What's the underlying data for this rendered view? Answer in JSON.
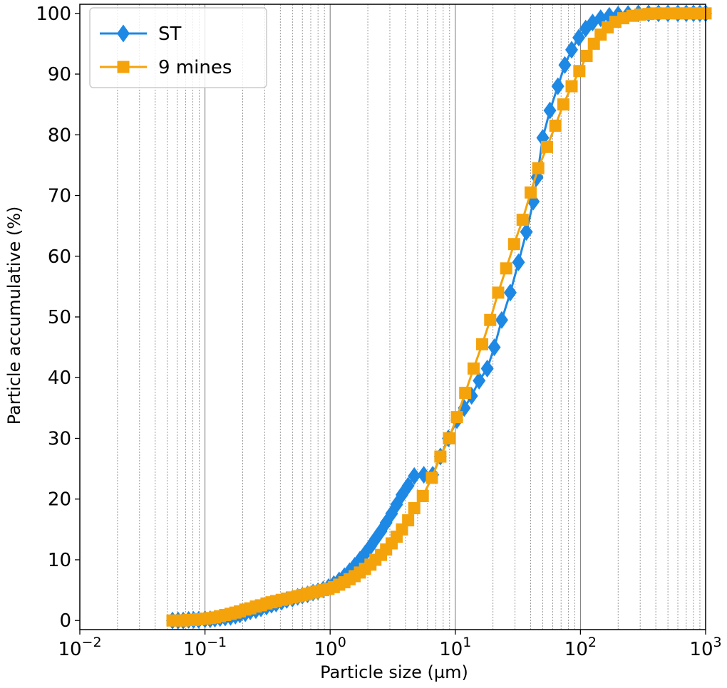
{
  "chart_data": {
    "type": "line",
    "title": "",
    "xlabel": "Particle size (µm)",
    "ylabel": "Particle accumulative (%)",
    "xscale": "log",
    "xlim": [
      0.01,
      1000
    ],
    "ylim": [
      -1.5,
      101.5
    ],
    "x_ticks": [
      0.01,
      0.1,
      1,
      10,
      100,
      1000
    ],
    "x_tick_labels": [
      {
        "base": "10",
        "exp": "−2"
      },
      {
        "base": "10",
        "exp": "−1"
      },
      {
        "base": "10",
        "exp": "0"
      },
      {
        "base": "10",
        "exp": "1"
      },
      {
        "base": "10",
        "exp": "2"
      },
      {
        "base": "10",
        "exp": "3"
      }
    ],
    "y_ticks": [
      0,
      10,
      20,
      30,
      40,
      50,
      60,
      70,
      80,
      90,
      100
    ],
    "y_tick_labels": [
      "0",
      "10",
      "20",
      "30",
      "40",
      "50",
      "60",
      "70",
      "80",
      "90",
      "100"
    ],
    "grid": "vertical major and minor (dotted) lines",
    "legend_position": "top-left",
    "series": [
      {
        "name": "ST",
        "color": "#1e88e5",
        "marker": "diamond",
        "points": [
          [
            0.055,
            0.0
          ],
          [
            0.061,
            0.0
          ],
          [
            0.067,
            0.0
          ],
          [
            0.074,
            0.1
          ],
          [
            0.081,
            0.1
          ],
          [
            0.089,
            0.1
          ],
          [
            0.1,
            0.2
          ],
          [
            0.11,
            0.2
          ],
          [
            0.12,
            0.3
          ],
          [
            0.132,
            0.4
          ],
          [
            0.145,
            0.5
          ],
          [
            0.16,
            0.6
          ],
          [
            0.175,
            0.8
          ],
          [
            0.19,
            1.0
          ],
          [
            0.21,
            1.2
          ],
          [
            0.23,
            1.5
          ],
          [
            0.255,
            1.7
          ],
          [
            0.28,
            2.0
          ],
          [
            0.31,
            2.3
          ],
          [
            0.34,
            2.6
          ],
          [
            0.37,
            2.8
          ],
          [
            0.41,
            3.1
          ],
          [
            0.45,
            3.4
          ],
          [
            0.5,
            3.6
          ],
          [
            0.55,
            3.9
          ],
          [
            0.6,
            4.1
          ],
          [
            0.66,
            4.3
          ],
          [
            0.73,
            4.6
          ],
          [
            0.8,
            4.8
          ],
          [
            0.88,
            5.1
          ],
          [
            0.97,
            5.5
          ],
          [
            1.07,
            6.0
          ],
          [
            1.18,
            6.6
          ],
          [
            1.3,
            7.3
          ],
          [
            1.43,
            8.1
          ],
          [
            1.57,
            9.0
          ],
          [
            1.73,
            10.0
          ],
          [
            1.9,
            11.0
          ],
          [
            2.1,
            12.2
          ],
          [
            2.3,
            13.4
          ],
          [
            2.55,
            14.7
          ],
          [
            2.8,
            16.1
          ],
          [
            3.1,
            17.6
          ],
          [
            3.4,
            19.1
          ],
          [
            3.75,
            20.7
          ],
          [
            4.2,
            22.2
          ],
          [
            4.7,
            23.8
          ],
          [
            5.6,
            24.0
          ],
          [
            6.6,
            24.0
          ],
          [
            7.6,
            27.0
          ],
          [
            8.8,
            30.0
          ],
          [
            10.3,
            33.0
          ],
          [
            11.8,
            35.0
          ],
          [
            13.5,
            37.0
          ],
          [
            15.5,
            39.5
          ],
          [
            18.0,
            41.5
          ],
          [
            20.5,
            45.0
          ],
          [
            23.5,
            49.5
          ],
          [
            27.5,
            54.0
          ],
          [
            32.0,
            59.0
          ],
          [
            37.0,
            64.0
          ],
          [
            42.0,
            69.0
          ],
          [
            45.0,
            73.0
          ],
          [
            50.0,
            79.5
          ],
          [
            57.0,
            84.0
          ],
          [
            66.0,
            88.0
          ],
          [
            75.0,
            91.5
          ],
          [
            85.0,
            94.0
          ],
          [
            97.0,
            96.0
          ],
          [
            110.0,
            97.5
          ],
          [
            125.0,
            98.5
          ],
          [
            145.0,
            99.2
          ],
          [
            170.0,
            99.6
          ],
          [
            200.0,
            99.8
          ],
          [
            240.0,
            99.9
          ],
          [
            290.0,
            100.0
          ],
          [
            350.0,
            100.0
          ],
          [
            420.0,
            100.0
          ],
          [
            500.0,
            100.0
          ],
          [
            600.0,
            100.0
          ],
          [
            700.0,
            100.0
          ],
          [
            800.0,
            100.0
          ],
          [
            900.0,
            100.0
          ],
          [
            1000.0,
            100.0
          ]
        ]
      },
      {
        "name": "9 mines",
        "color": "#f5a30a",
        "marker": "square",
        "points": [
          [
            0.055,
            0.0
          ],
          [
            0.061,
            0.0
          ],
          [
            0.067,
            0.0
          ],
          [
            0.074,
            0.1
          ],
          [
            0.081,
            0.1
          ],
          [
            0.089,
            0.2
          ],
          [
            0.1,
            0.3
          ],
          [
            0.11,
            0.4
          ],
          [
            0.12,
            0.5
          ],
          [
            0.132,
            0.7
          ],
          [
            0.145,
            0.9
          ],
          [
            0.16,
            1.1
          ],
          [
            0.175,
            1.3
          ],
          [
            0.19,
            1.5
          ],
          [
            0.21,
            1.8
          ],
          [
            0.23,
            2.0
          ],
          [
            0.255,
            2.3
          ],
          [
            0.28,
            2.5
          ],
          [
            0.31,
            2.8
          ],
          [
            0.34,
            3.0
          ],
          [
            0.37,
            3.2
          ],
          [
            0.41,
            3.4
          ],
          [
            0.45,
            3.6
          ],
          [
            0.5,
            3.8
          ],
          [
            0.55,
            4.0
          ],
          [
            0.6,
            4.2
          ],
          [
            0.66,
            4.4
          ],
          [
            0.73,
            4.6
          ],
          [
            0.8,
            4.8
          ],
          [
            0.88,
            5.0
          ],
          [
            0.97,
            5.2
          ],
          [
            1.07,
            5.5
          ],
          [
            1.18,
            5.9
          ],
          [
            1.3,
            6.3
          ],
          [
            1.43,
            6.8
          ],
          [
            1.57,
            7.3
          ],
          [
            1.73,
            7.9
          ],
          [
            1.9,
            8.5
          ],
          [
            2.1,
            9.2
          ],
          [
            2.3,
            10.0
          ],
          [
            2.55,
            10.8
          ],
          [
            2.8,
            11.7
          ],
          [
            3.1,
            12.7
          ],
          [
            3.4,
            13.8
          ],
          [
            3.75,
            15.0
          ],
          [
            4.2,
            16.5
          ],
          [
            4.7,
            18.5
          ],
          [
            5.5,
            20.5
          ],
          [
            6.5,
            23.5
          ],
          [
            7.6,
            27.0
          ],
          [
            8.9,
            30.0
          ],
          [
            10.3,
            33.5
          ],
          [
            12.0,
            37.5
          ],
          [
            14.0,
            41.5
          ],
          [
            16.4,
            45.5
          ],
          [
            19.0,
            49.5
          ],
          [
            22.0,
            54.0
          ],
          [
            25.5,
            58.0
          ],
          [
            29.5,
            62.0
          ],
          [
            34.5,
            66.0
          ],
          [
            40.0,
            70.5
          ],
          [
            46.0,
            74.5
          ],
          [
            54.0,
            78.0
          ],
          [
            63.0,
            81.5
          ],
          [
            73.0,
            85.0
          ],
          [
            85.0,
            88.0
          ],
          [
            98.0,
            90.5
          ],
          [
            112.0,
            93.0
          ],
          [
            128.0,
            95.0
          ],
          [
            145.0,
            96.5
          ],
          [
            165.0,
            97.7
          ],
          [
            190.0,
            98.6
          ],
          [
            220.0,
            99.2
          ],
          [
            260.0,
            99.6
          ],
          [
            300.0,
            99.8
          ],
          [
            350.0,
            99.9
          ],
          [
            400.0,
            100.0
          ],
          [
            460.0,
            100.0
          ],
          [
            530.0,
            100.0
          ],
          [
            610.0,
            100.0
          ],
          [
            700.0,
            100.0
          ],
          [
            800.0,
            100.0
          ],
          [
            900.0,
            100.0
          ],
          [
            1000.0,
            100.0
          ]
        ]
      }
    ]
  }
}
